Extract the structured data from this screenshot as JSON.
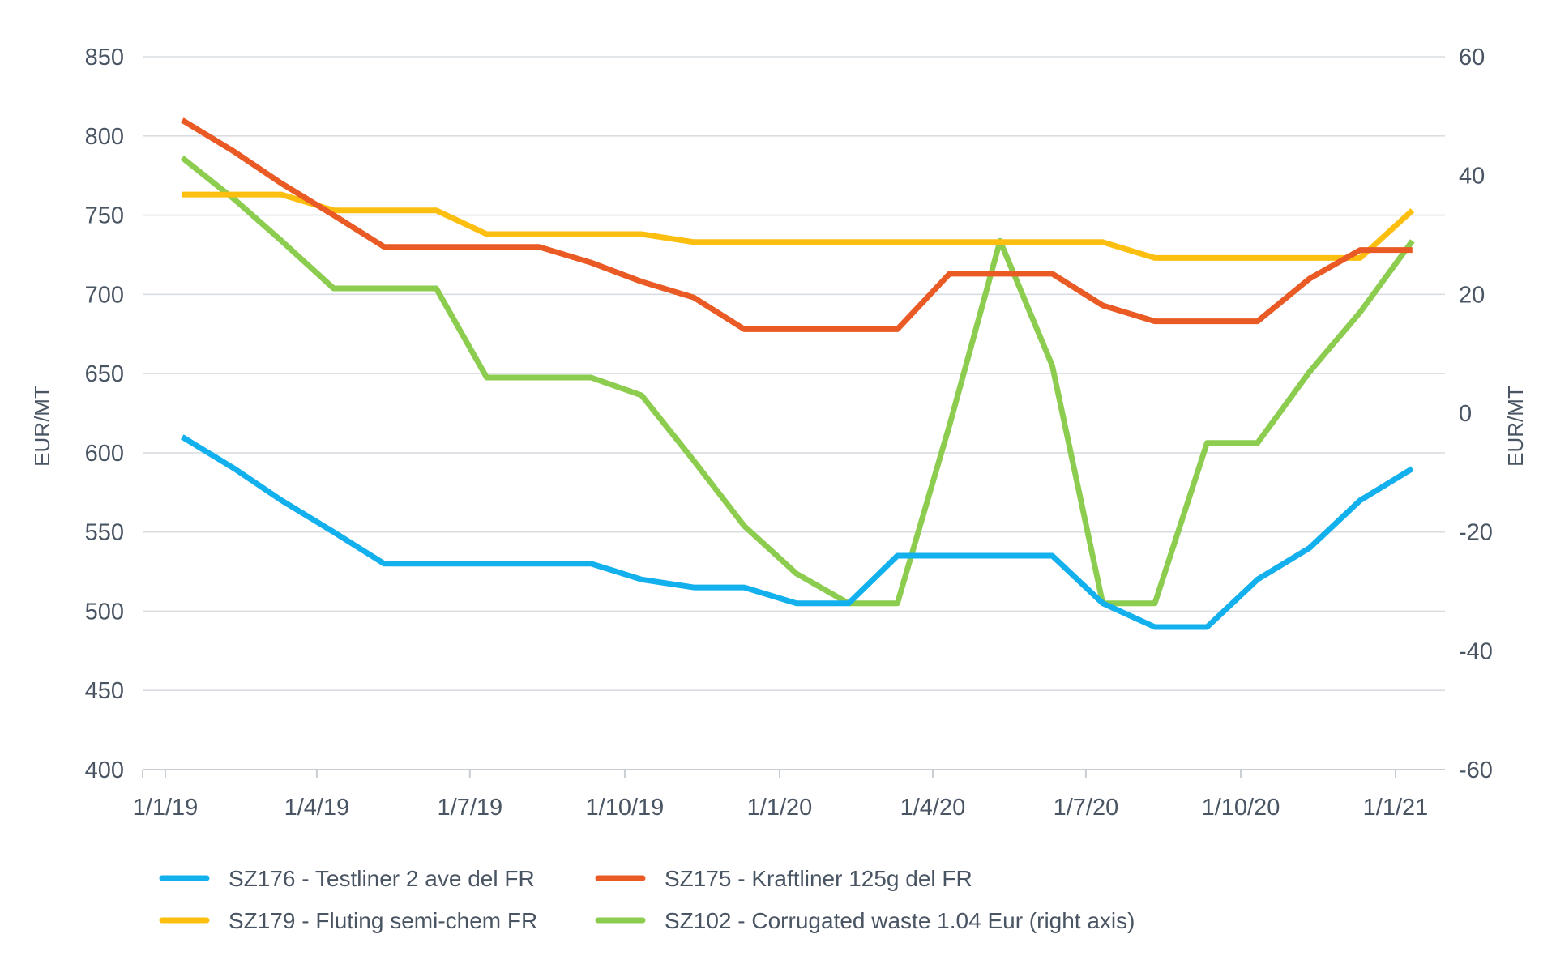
{
  "chart_data": {
    "type": "line",
    "title": "",
    "xlabel": "",
    "ylabel": "EUR/MT",
    "y2label": "EUR/MT",
    "ylim": [
      400,
      850
    ],
    "y2lim": [
      -60,
      60
    ],
    "grid": true,
    "legend_placement": "bottom",
    "y_ticks": [
      "850",
      "800",
      "750",
      "700",
      "650",
      "600",
      "550",
      "500",
      "450",
      "400"
    ],
    "y2_ticks": [
      "60",
      "40",
      "20",
      "0",
      "-20",
      "-40",
      "-60"
    ],
    "x_ticks": [
      {
        "label": "1/1/19",
        "date": "2019-01-01"
      },
      {
        "label": "1/4/19",
        "date": "2019-04-01"
      },
      {
        "label": "1/7/19",
        "date": "2019-07-01"
      },
      {
        "label": "1/10/19",
        "date": "2019-10-01"
      },
      {
        "label": "1/1/20",
        "date": "2020-01-01"
      },
      {
        "label": "1/4/20",
        "date": "2020-04-01"
      },
      {
        "label": "1/7/20",
        "date": "2020-07-01"
      },
      {
        "label": "1/10/20",
        "date": "2020-10-01"
      },
      {
        "label": "1/1/21",
        "date": "2021-01-01"
      }
    ],
    "x": [
      "2019-01-11",
      "2019-02-11",
      "2019-03-11",
      "2019-04-11",
      "2019-05-11",
      "2019-06-11",
      "2019-07-11",
      "2019-08-11",
      "2019-09-11",
      "2019-10-11",
      "2019-11-11",
      "2019-12-11",
      "2020-01-11",
      "2020-02-11",
      "2020-03-11",
      "2020-04-11",
      "2020-05-11",
      "2020-06-11",
      "2020-07-11",
      "2020-08-11",
      "2020-09-11",
      "2020-10-11",
      "2020-11-11",
      "2020-12-11",
      "2021-01-11"
    ],
    "series": [
      {
        "name": "SZ176 - Testliner 2 ave del FR",
        "color": "#12b0ec",
        "axis": "left",
        "values": [
          610,
          590,
          570,
          550,
          530,
          530,
          530,
          530,
          530,
          520,
          515,
          515,
          505,
          505,
          535,
          535,
          535,
          535,
          505,
          490,
          490,
          520,
          540,
          570,
          590
        ]
      },
      {
        "name": "SZ175 - Kraftliner 125g del FR",
        "color": "#ea5a24",
        "axis": "left",
        "values": [
          810,
          790,
          770,
          750,
          730,
          730,
          730,
          730,
          720,
          708,
          698,
          678,
          678,
          678,
          678,
          713,
          713,
          713,
          693,
          683,
          683,
          683,
          710,
          728,
          728
        ]
      },
      {
        "name": "SZ179 - Fluting semi-chem FR",
        "color": "#fcbf10",
        "axis": "left",
        "values": [
          763,
          763,
          763,
          753,
          753,
          753,
          738,
          738,
          738,
          738,
          733,
          733,
          733,
          733,
          733,
          733,
          733,
          733,
          733,
          723,
          723,
          723,
          723,
          723,
          753
        ]
      },
      {
        "name": "SZ102 - Corrugated waste 1.04 Eur (right axis)",
        "color": "#8ccd50",
        "axis": "right",
        "values": [
          43,
          36,
          29,
          21,
          21,
          21,
          6,
          6,
          6,
          3,
          -8,
          -19,
          -27,
          -32,
          -32,
          -2,
          29,
          8,
          -32,
          -32,
          -5,
          -5,
          7,
          17,
          29
        ]
      }
    ]
  }
}
